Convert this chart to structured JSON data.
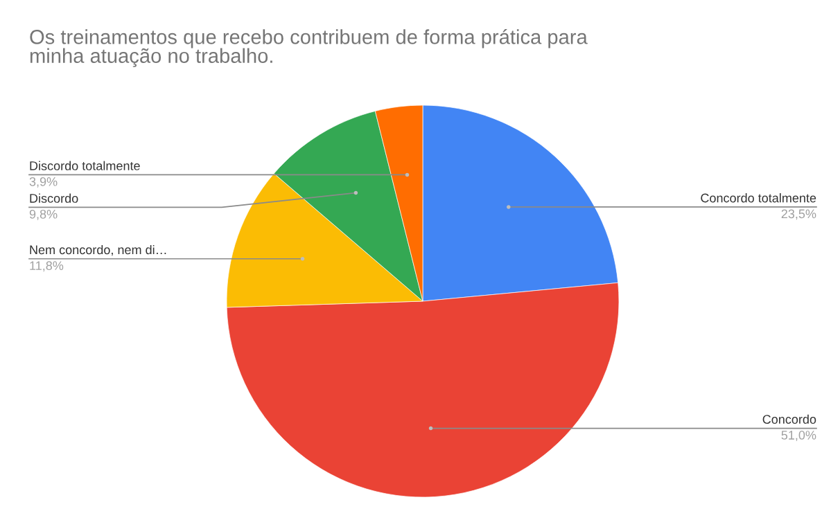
{
  "chart_data": {
    "type": "pie",
    "title": "Os treinamentos que recebo contribuem de forma prática para\nminha atuação no trabalho.",
    "categories": [
      "Concordo totalmente",
      "Concordo",
      "Nem concordo, nem di…",
      "Discordo",
      "Discordo totalmente"
    ],
    "values": [
      23.5,
      51.0,
      11.8,
      9.8,
      3.9
    ],
    "colors": [
      "#4285f4",
      "#ea4335",
      "#fbbc04",
      "#34a853",
      "#ff6d01"
    ],
    "value_labels": [
      "23,5%",
      "51,0%",
      "11,8%",
      "9,8%",
      "3,9%"
    ]
  }
}
